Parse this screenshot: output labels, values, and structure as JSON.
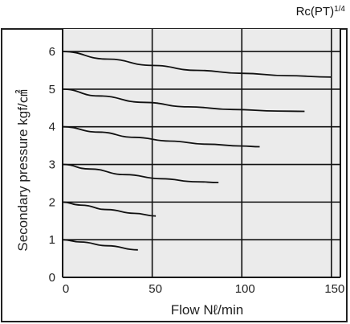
{
  "chart_data": {
    "type": "line",
    "port_label": "Rc(PT)",
    "port_size": "1/4",
    "xlabel": "Flow Nℓ/min",
    "ylabel": "Secondary pressure kgf/㎠",
    "x_ticks": [
      0,
      50,
      100,
      150
    ],
    "y_ticks": [
      0,
      1,
      2,
      3,
      4,
      5,
      6
    ],
    "xlim": [
      0,
      155
    ],
    "ylim": [
      0,
      6.6
    ],
    "grid": true,
    "series": [
      {
        "x": [
          0,
          10,
          25,
          42
        ],
        "y": [
          1.0,
          0.94,
          0.84,
          0.73
        ]
      },
      {
        "x": [
          0,
          10,
          25,
          40,
          52
        ],
        "y": [
          2.0,
          1.92,
          1.8,
          1.7,
          1.63
        ]
      },
      {
        "x": [
          0,
          15,
          35,
          55,
          75,
          87
        ],
        "y": [
          3.0,
          2.88,
          2.73,
          2.62,
          2.54,
          2.52
        ]
      },
      {
        "x": [
          0,
          20,
          40,
          60,
          80,
          100,
          110
        ],
        "y": [
          4.0,
          3.86,
          3.72,
          3.62,
          3.54,
          3.49,
          3.47
        ]
      },
      {
        "x": [
          0,
          20,
          45,
          70,
          95,
          120,
          135
        ],
        "y": [
          5.0,
          4.82,
          4.65,
          4.53,
          4.46,
          4.42,
          4.41
        ]
      },
      {
        "x": [
          0,
          25,
          50,
          75,
          100,
          125,
          150
        ],
        "y": [
          6.0,
          5.8,
          5.63,
          5.5,
          5.42,
          5.36,
          5.32
        ]
      }
    ],
    "colors": {
      "plot_bg": "#ebebeb",
      "line": "#111111",
      "grid": "#111111",
      "frame": "#222222"
    }
  }
}
